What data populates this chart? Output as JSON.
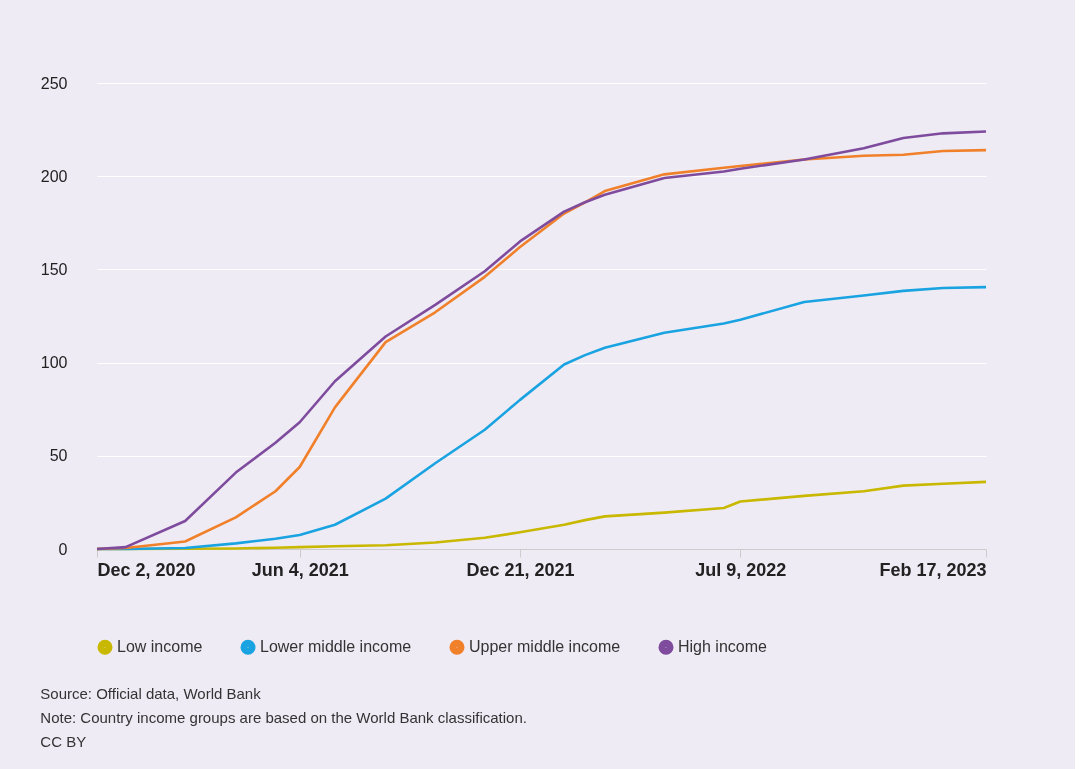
{
  "chart_data": {
    "type": "line",
    "x": [
      "2020-12-02",
      "2020-12-28",
      "2021-02-20",
      "2021-04-07",
      "2021-05-13",
      "2021-06-04",
      "2021-07-06",
      "2021-08-21",
      "2021-10-05",
      "2021-11-19",
      "2021-12-21",
      "2022-01-30",
      "2022-02-18",
      "2022-03-08",
      "2022-05-01",
      "2022-06-24",
      "2022-07-09",
      "2022-09-05",
      "2022-10-29",
      "2022-12-04",
      "2023-01-09",
      "2023-02-17"
    ],
    "series": [
      {
        "name": "Low income",
        "color": "#c9b800",
        "values": [
          0,
          0,
          0.1,
          0.3,
          0.7,
          1,
          1.5,
          2,
          3.5,
          6,
          9,
          13,
          15.5,
          17.5,
          19.5,
          22,
          25.5,
          28.5,
          31,
          34,
          35,
          36
        ]
      },
      {
        "name": "Lower middle income",
        "color": "#1aa3e1",
        "values": [
          0,
          0,
          0.5,
          3,
          5.5,
          7.5,
          13,
          27,
          46,
          64,
          80,
          99,
          104,
          108,
          116,
          121,
          123,
          132.5,
          136,
          138.5,
          140,
          140.5
        ]
      },
      {
        "name": "Upper middle income",
        "color": "#f0802a",
        "values": [
          0,
          0.5,
          4,
          17,
          31,
          44,
          76,
          111,
          127,
          146,
          162,
          180,
          186,
          192,
          201,
          204.5,
          205.5,
          209,
          211,
          211.5,
          213.5,
          214
        ]
      },
      {
        "name": "High income",
        "color": "#7e4b9d",
        "values": [
          0,
          1,
          15,
          41,
          57,
          68,
          90,
          114,
          131,
          149,
          165,
          181,
          186,
          190,
          199,
          202.5,
          204,
          209,
          215,
          220.5,
          223,
          224
        ]
      }
    ],
    "xlim": [
      "2020-12-02",
      "2023-02-17"
    ],
    "xticks": [
      {
        "value": "2020-12-02",
        "label": "Dec 2, 2020"
      },
      {
        "value": "2021-06-04",
        "label": "Jun 4, 2021"
      },
      {
        "value": "2021-12-21",
        "label": "Dec 21, 2021"
      },
      {
        "value": "2022-07-09",
        "label": "Jul 9, 2022"
      },
      {
        "value": "2023-02-17",
        "label": "Feb 17, 2023"
      }
    ],
    "ylim": [
      0,
      250
    ],
    "yticks": [
      0,
      50,
      100,
      150,
      200,
      250
    ],
    "grid": "y",
    "legend": "bottom",
    "marker": "none",
    "line_style": "solid",
    "annotations": [
      "Source: Official data, World Bank",
      "Note: Country income groups are based on the World Bank classification.",
      "CC BY"
    ]
  }
}
